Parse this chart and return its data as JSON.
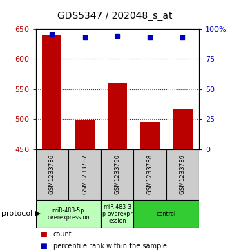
{
  "title": "GDS5347 / 202048_s_at",
  "samples": [
    "GSM1233786",
    "GSM1233787",
    "GSM1233790",
    "GSM1233788",
    "GSM1233789"
  ],
  "counts": [
    641,
    499,
    560,
    496,
    518
  ],
  "percentiles": [
    95,
    93,
    94,
    93,
    93
  ],
  "ylim": [
    450,
    650
  ],
  "yticks": [
    450,
    500,
    550,
    600,
    650
  ],
  "percentile_ylim": [
    0,
    100
  ],
  "percentile_yticks": [
    0,
    25,
    50,
    75,
    100
  ],
  "percentile_yticklabels": [
    "0",
    "25",
    "50",
    "75",
    "100%"
  ],
  "bar_color": "#bb0000",
  "dot_color": "#0000bb",
  "bar_width": 0.6,
  "protocol_groups": [
    {
      "label": "miR-483-5p\noverexpression",
      "start": 0,
      "end": 1,
      "color": "#bbffbb"
    },
    {
      "label": "miR-483-3\np overexpr\nession",
      "start": 2,
      "end": 2,
      "color": "#bbffbb"
    },
    {
      "label": "control",
      "start": 3,
      "end": 4,
      "color": "#33cc33"
    }
  ],
  "legend_count_label": "count",
  "legend_percentile_label": "percentile rank within the sample",
  "ylabel_left_color": "#bb0000",
  "ylabel_right_color": "#0000bb",
  "sample_box_color": "#cccccc",
  "grid_dotted_color": "#333333"
}
